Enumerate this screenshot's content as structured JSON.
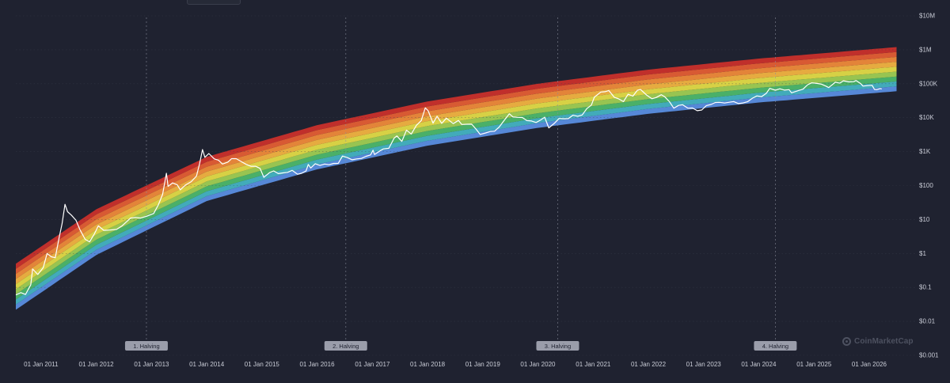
{
  "chart_data": {
    "type": "line",
    "title": "",
    "xlabel": "",
    "ylabel": "",
    "y_scale": "log",
    "ylim": [
      0.001,
      10000000
    ],
    "xlim": [
      "2010-07-18",
      "2026-11-01"
    ],
    "y_ticks": [
      {
        "value": 10000000,
        "label": "$10M"
      },
      {
        "value": 1000000,
        "label": "$1M"
      },
      {
        "value": 100000,
        "label": "$100K"
      },
      {
        "value": 10000,
        "label": "$10K"
      },
      {
        "value": 1000,
        "label": "$1K"
      },
      {
        "value": 100,
        "label": "$100"
      },
      {
        "value": 10,
        "label": "$10"
      },
      {
        "value": 1,
        "label": "$1"
      },
      {
        "value": 0.1,
        "label": "$0.1"
      },
      {
        "value": 0.01,
        "label": "$0.01"
      },
      {
        "value": 0.001,
        "label": "$0.001"
      }
    ],
    "x_ticks": [
      {
        "date": "2011-01-01",
        "label": "01 Jan 2011"
      },
      {
        "date": "2012-01-01",
        "label": "01 Jan 2012"
      },
      {
        "date": "2013-01-01",
        "label": "01 Jan 2013"
      },
      {
        "date": "2014-01-01",
        "label": "01 Jan 2014"
      },
      {
        "date": "2015-01-01",
        "label": "01 Jan 2015"
      },
      {
        "date": "2016-01-01",
        "label": "01 Jan 2016"
      },
      {
        "date": "2017-01-01",
        "label": "01 Jan 2017"
      },
      {
        "date": "2018-01-01",
        "label": "01 Jan 2018"
      },
      {
        "date": "2019-01-01",
        "label": "01 Jan 2019"
      },
      {
        "date": "2020-01-01",
        "label": "01 Jan 2020"
      },
      {
        "date": "2021-01-01",
        "label": "01 Jan 2021"
      },
      {
        "date": "2022-01-01",
        "label": "01 Jan 2022"
      },
      {
        "date": "2023-01-01",
        "label": "01 Jan 2023"
      },
      {
        "date": "2024-01-01",
        "label": "01 Jan 2024"
      },
      {
        "date": "2025-01-01",
        "label": "01 Jan 2025"
      },
      {
        "date": "2026-01-01",
        "label": "01 Jan 2026"
      }
    ],
    "halvings": [
      {
        "date": "2012-11-28",
        "label": "1. Halving"
      },
      {
        "date": "2016-07-09",
        "label": "2. Halving"
      },
      {
        "date": "2020-05-11",
        "label": "3. Halving"
      },
      {
        "date": "2024-04-20",
        "label": "4. Halving"
      }
    ],
    "rainbow_bands": [
      {
        "color": "#5a8ee0",
        "lower": [
          [
            "2010-07-18",
            0.022
          ],
          [
            "2012-01-01",
            0.9
          ],
          [
            "2014-01-01",
            35
          ],
          [
            "2016-01-01",
            300
          ],
          [
            "2018-01-01",
            1500
          ],
          [
            "2020-01-01",
            5000
          ],
          [
            "2022-01-01",
            13000
          ],
          [
            "2024-01-01",
            28000
          ],
          [
            "2026-07-01",
            60000
          ]
        ]
      },
      {
        "color": "#45b3c2"
      },
      {
        "color": "#4db86b"
      },
      {
        "color": "#9fcd53"
      },
      {
        "color": "#e2db47"
      },
      {
        "color": "#f1b341"
      },
      {
        "color": "#ee8a3a"
      },
      {
        "color": "#e35e34"
      },
      {
        "color": "#c9302b",
        "upper": [
          [
            "2010-07-18",
            0.5
          ],
          [
            "2012-01-01",
            20
          ],
          [
            "2014-01-01",
            700
          ],
          [
            "2016-01-01",
            6000
          ],
          [
            "2018-01-01",
            30000
          ],
          [
            "2020-01-01",
            100000
          ],
          [
            "2022-01-01",
            260000
          ],
          [
            "2024-01-01",
            550000
          ],
          [
            "2026-07-01",
            1200000
          ]
        ]
      }
    ],
    "series": [
      {
        "color": "#ffffff",
        "points": [
          [
            "2010-07-18",
            0.06
          ],
          [
            "2010-08-20",
            0.07
          ],
          [
            "2010-09-20",
            0.062
          ],
          [
            "2010-10-25",
            0.12
          ],
          [
            "2010-11-06",
            0.35
          ],
          [
            "2010-12-10",
            0.24
          ],
          [
            "2011-01-15",
            0.38
          ],
          [
            "2011-02-10",
            1.0
          ],
          [
            "2011-03-10",
            0.8
          ],
          [
            "2011-04-05",
            0.75
          ],
          [
            "2011-05-01",
            3.0
          ],
          [
            "2011-05-20",
            7.5
          ],
          [
            "2011-06-08",
            28
          ],
          [
            "2011-06-25",
            17
          ],
          [
            "2011-07-20",
            13.5
          ],
          [
            "2011-08-20",
            9.5
          ],
          [
            "2011-09-15",
            5.0
          ],
          [
            "2011-10-20",
            2.6
          ],
          [
            "2011-11-18",
            2.2
          ],
          [
            "2011-12-20",
            3.8
          ],
          [
            "2012-01-15",
            6.5
          ],
          [
            "2012-02-20",
            4.8
          ],
          [
            "2012-04-01",
            4.9
          ],
          [
            "2012-05-15",
            5.1
          ],
          [
            "2012-06-20",
            6.5
          ],
          [
            "2012-08-15",
            11
          ],
          [
            "2012-09-15",
            11.5
          ],
          [
            "2012-10-20",
            11
          ],
          [
            "2012-12-01",
            12.5
          ],
          [
            "2013-01-15",
            15
          ],
          [
            "2013-02-15",
            27
          ],
          [
            "2013-03-15",
            55
          ],
          [
            "2013-04-09",
            230
          ],
          [
            "2013-04-20",
            95
          ],
          [
            "2013-05-20",
            120
          ],
          [
            "2013-06-20",
            105
          ],
          [
            "2013-07-10",
            75
          ],
          [
            "2013-08-15",
            105
          ],
          [
            "2013-09-20",
            130
          ],
          [
            "2013-10-25",
            190
          ],
          [
            "2013-11-15",
            450
          ],
          [
            "2013-12-04",
            1150
          ],
          [
            "2013-12-20",
            680
          ],
          [
            "2014-01-15",
            880
          ],
          [
            "2014-02-20",
            610
          ],
          [
            "2014-03-20",
            560
          ],
          [
            "2014-04-15",
            430
          ],
          [
            "2014-05-20",
            490
          ],
          [
            "2014-06-15",
            620
          ],
          [
            "2014-07-15",
            620
          ],
          [
            "2014-08-20",
            500
          ],
          [
            "2014-09-20",
            420
          ],
          [
            "2014-10-20",
            370
          ],
          [
            "2014-11-20",
            370
          ],
          [
            "2014-12-20",
            320
          ],
          [
            "2015-01-14",
            175
          ],
          [
            "2015-02-20",
            240
          ],
          [
            "2015-03-20",
            270
          ],
          [
            "2015-04-20",
            225
          ],
          [
            "2015-05-20",
            236
          ],
          [
            "2015-06-20",
            245
          ],
          [
            "2015-07-20",
            280
          ],
          [
            "2015-08-25",
            215
          ],
          [
            "2015-09-20",
            230
          ],
          [
            "2015-10-20",
            270
          ],
          [
            "2015-11-04",
            420
          ],
          [
            "2015-11-20",
            330
          ],
          [
            "2015-12-20",
            440
          ],
          [
            "2016-01-20",
            390
          ],
          [
            "2016-02-20",
            430
          ],
          [
            "2016-03-20",
            410
          ],
          [
            "2016-04-20",
            450
          ],
          [
            "2016-05-20",
            450
          ],
          [
            "2016-06-17",
            740
          ],
          [
            "2016-07-20",
            665
          ],
          [
            "2016-08-20",
            575
          ],
          [
            "2016-09-20",
            610
          ],
          [
            "2016-10-20",
            630
          ],
          [
            "2016-11-20",
            730
          ],
          [
            "2016-12-20",
            800
          ],
          [
            "2017-01-05",
            1100
          ],
          [
            "2017-01-15",
            820
          ],
          [
            "2017-02-20",
            1050
          ],
          [
            "2017-03-15",
            1200
          ],
          [
            "2017-04-20",
            1250
          ],
          [
            "2017-05-25",
            2500
          ],
          [
            "2017-06-12",
            2900
          ],
          [
            "2017-07-15",
            2000
          ],
          [
            "2017-08-15",
            4300
          ],
          [
            "2017-09-15",
            3300
          ],
          [
            "2017-10-20",
            6000
          ],
          [
            "2017-11-20",
            8200
          ],
          [
            "2017-12-17",
            19500
          ],
          [
            "2018-01-05",
            16000
          ],
          [
            "2018-02-06",
            6900
          ],
          [
            "2018-03-05",
            11000
          ],
          [
            "2018-04-05",
            6800
          ],
          [
            "2018-05-05",
            9700
          ],
          [
            "2018-06-20",
            6700
          ],
          [
            "2018-07-25",
            8300
          ],
          [
            "2018-08-15",
            6300
          ],
          [
            "2018-09-20",
            6400
          ],
          [
            "2018-10-20",
            6450
          ],
          [
            "2018-11-20",
            4500
          ],
          [
            "2018-12-15",
            3200
          ],
          [
            "2019-01-20",
            3550
          ],
          [
            "2019-02-20",
            3900
          ],
          [
            "2019-03-20",
            4000
          ],
          [
            "2019-04-20",
            5300
          ],
          [
            "2019-05-20",
            8000
          ],
          [
            "2019-06-26",
            13000
          ],
          [
            "2019-07-20",
            10500
          ],
          [
            "2019-08-20",
            10200
          ],
          [
            "2019-09-20",
            10100
          ],
          [
            "2019-10-20",
            8200
          ],
          [
            "2019-11-20",
            8000
          ],
          [
            "2019-12-20",
            7200
          ],
          [
            "2020-01-20",
            8600
          ],
          [
            "2020-02-15",
            10300
          ],
          [
            "2020-03-13",
            5000
          ],
          [
            "2020-04-20",
            6900
          ],
          [
            "2020-05-20",
            9500
          ],
          [
            "2020-06-20",
            9300
          ],
          [
            "2020-07-20",
            9400
          ],
          [
            "2020-08-20",
            11800
          ],
          [
            "2020-09-20",
            11000
          ],
          [
            "2020-10-20",
            12000
          ],
          [
            "2020-11-20",
            18500
          ],
          [
            "2020-12-20",
            23500
          ],
          [
            "2021-01-08",
            40000
          ],
          [
            "2021-02-20",
            57000
          ],
          [
            "2021-03-20",
            58000
          ],
          [
            "2021-04-14",
            63000
          ],
          [
            "2021-05-20",
            40000
          ],
          [
            "2021-06-20",
            35500
          ],
          [
            "2021-07-20",
            29800
          ],
          [
            "2021-08-20",
            49000
          ],
          [
            "2021-09-20",
            43000
          ],
          [
            "2021-10-20",
            64000
          ],
          [
            "2021-11-10",
            67500
          ],
          [
            "2021-12-20",
            46500
          ],
          [
            "2022-01-24",
            36000
          ],
          [
            "2022-02-20",
            39000
          ],
          [
            "2022-03-28",
            47500
          ],
          [
            "2022-04-20",
            41000
          ],
          [
            "2022-05-20",
            29500
          ],
          [
            "2022-06-18",
            19000
          ],
          [
            "2022-07-20",
            23000
          ],
          [
            "2022-08-15",
            24000
          ],
          [
            "2022-09-20",
            19000
          ],
          [
            "2022-10-20",
            19200
          ],
          [
            "2022-11-20",
            16000
          ],
          [
            "2022-12-20",
            16800
          ],
          [
            "2023-01-20",
            22700
          ],
          [
            "2023-02-20",
            24500
          ],
          [
            "2023-03-20",
            28000
          ],
          [
            "2023-04-20",
            28300
          ],
          [
            "2023-05-20",
            27000
          ],
          [
            "2023-06-20",
            28500
          ],
          [
            "2023-07-20",
            29800
          ],
          [
            "2023-08-20",
            26000
          ],
          [
            "2023-09-20",
            27100
          ],
          [
            "2023-10-20",
            29700
          ],
          [
            "2023-11-20",
            37500
          ],
          [
            "2023-12-20",
            43700
          ],
          [
            "2024-01-20",
            41600
          ],
          [
            "2024-02-20",
            52000
          ],
          [
            "2024-03-14",
            73000
          ],
          [
            "2024-04-20",
            64500
          ],
          [
            "2024-05-20",
            71000
          ],
          [
            "2024-06-20",
            64800
          ],
          [
            "2024-07-20",
            67000
          ],
          [
            "2024-08-05",
            54000
          ],
          [
            "2024-09-20",
            63000
          ],
          [
            "2024-10-20",
            69000
          ],
          [
            "2024-11-20",
            94000
          ],
          [
            "2024-12-17",
            106000
          ],
          [
            "2025-01-20",
            102000
          ],
          [
            "2025-02-20",
            97000
          ],
          [
            "2025-03-20",
            85000
          ],
          [
            "2025-04-08",
            77000
          ],
          [
            "2025-05-22",
            111000
          ],
          [
            "2025-06-20",
            104000
          ],
          [
            "2025-07-14",
            122000
          ],
          [
            "2025-08-20",
            113000
          ],
          [
            "2025-09-20",
            115000
          ],
          [
            "2025-10-06",
            124000
          ],
          [
            "2025-11-05",
            101000
          ],
          [
            "2025-11-21",
            85000
          ],
          [
            "2025-12-20",
            88000
          ],
          [
            "2026-01-20",
            90000
          ],
          [
            "2026-02-05",
            68000
          ],
          [
            "2026-02-20",
            67000
          ],
          [
            "2026-03-15",
            72000
          ],
          [
            "2026-03-25",
            70000
          ]
        ]
      }
    ]
  },
  "watermark": {
    "text": "CoinMarketCap",
    "icon": "coinmarketcap-logo-icon"
  }
}
